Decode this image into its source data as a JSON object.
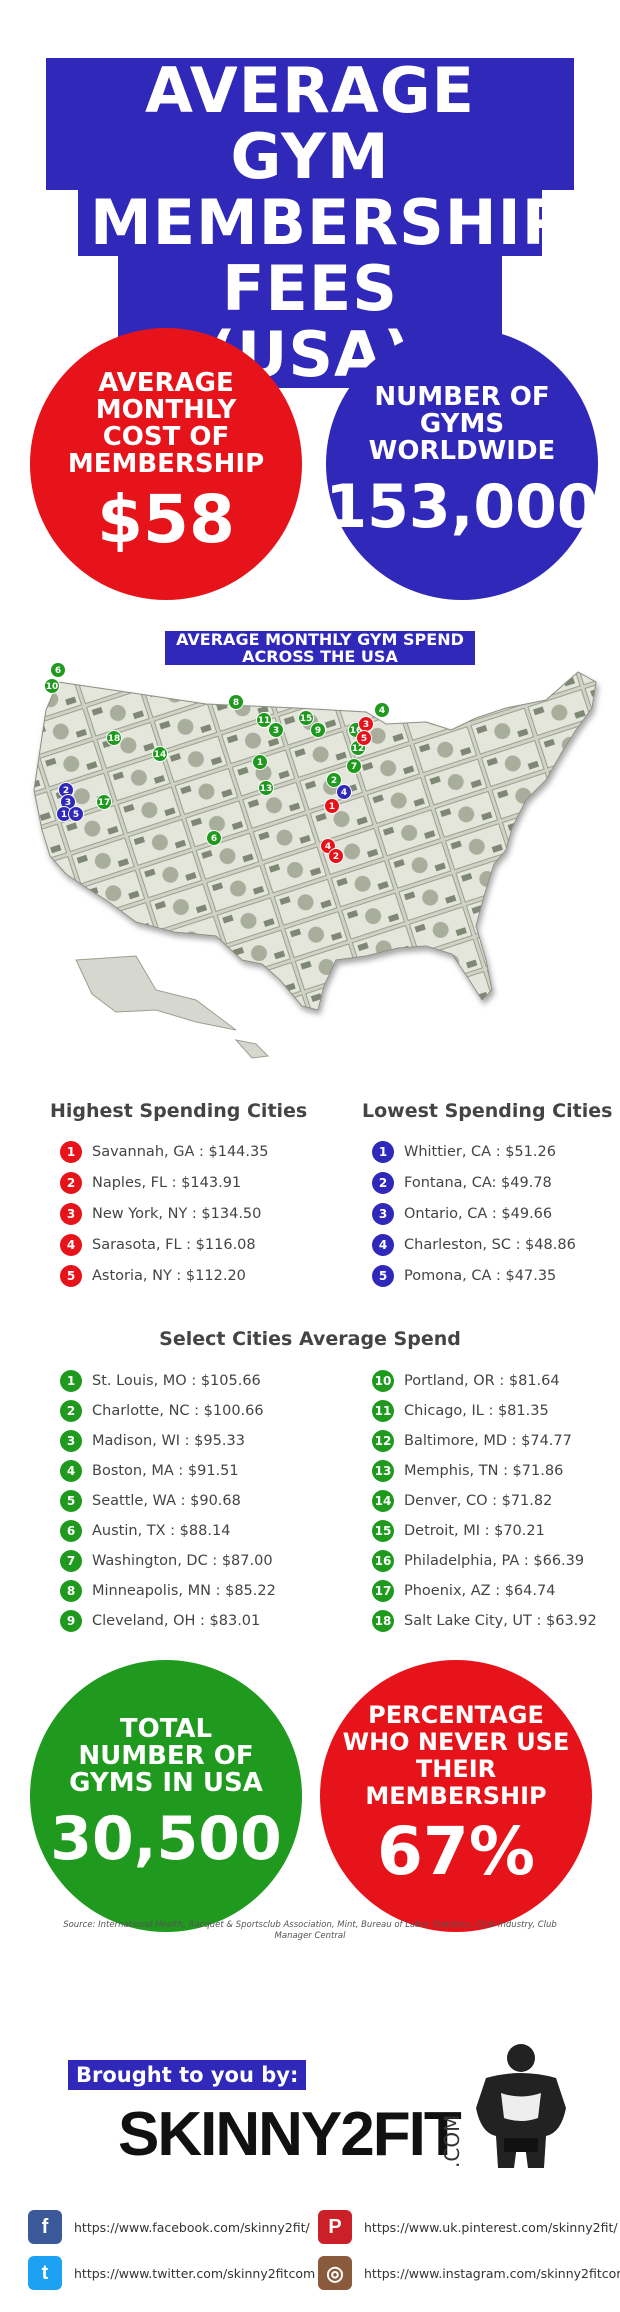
{
  "title": {
    "line1": "AVERAGE GYM",
    "line2": "MEMBERSHIP",
    "line3": "FEES (USA)"
  },
  "stats_top": {
    "avg_cost": {
      "label": "AVERAGE MONTHLY COST OF MEMBERSHIP",
      "value": "$58"
    },
    "gyms_worldwide": {
      "label": "NUMBER OF GYMS WORLDWIDE",
      "value": "153,000"
    }
  },
  "map": {
    "heading": "AVERAGE MONTHLY GYM SPEND ACROSS THE USA"
  },
  "highest": {
    "heading": "Highest Spending Cities",
    "items": [
      {
        "num": "1",
        "text": "Savannah, GA : $144.35"
      },
      {
        "num": "2",
        "text": "Naples, FL : $143.91"
      },
      {
        "num": "3",
        "text": "New York, NY : $134.50"
      },
      {
        "num": "4",
        "text": "Sarasota, FL : $116.08"
      },
      {
        "num": "5",
        "text": "Astoria, NY : $112.20"
      }
    ]
  },
  "lowest": {
    "heading": "Lowest Spending Cities",
    "items": [
      {
        "num": "1",
        "text": "Whittier, CA : $51.26"
      },
      {
        "num": "2",
        "text": "Fontana, CA: $49.78"
      },
      {
        "num": "3",
        "text": "Ontario, CA : $49.66"
      },
      {
        "num": "4",
        "text": "Charleston, SC : $48.86"
      },
      {
        "num": "5",
        "text": "Pomona, CA : $47.35"
      }
    ]
  },
  "select": {
    "heading": "Select Cities Average Spend",
    "left": [
      {
        "num": "1",
        "text": "St. Louis, MO : $105.66"
      },
      {
        "num": "2",
        "text": "Charlotte, NC : $100.66"
      },
      {
        "num": "3",
        "text": "Madison, WI : $95.33"
      },
      {
        "num": "4",
        "text": "Boston, MA : $91.51"
      },
      {
        "num": "5",
        "text": "Seattle, WA : $90.68"
      },
      {
        "num": "6",
        "text": "Austin, TX : $88.14"
      },
      {
        "num": "7",
        "text": "Washington, DC : $87.00"
      },
      {
        "num": "8",
        "text": "Minneapolis, MN : $85.22"
      },
      {
        "num": "9",
        "text": "Cleveland, OH : $83.01"
      }
    ],
    "right": [
      {
        "num": "10",
        "text": "Portland, OR : $81.64"
      },
      {
        "num": "11",
        "text": "Chicago, IL : $81.35"
      },
      {
        "num": "12",
        "text": "Baltimore, MD : $74.77"
      },
      {
        "num": "13",
        "text": "Memphis, TN : $71.86"
      },
      {
        "num": "14",
        "text": "Denver, CO : $71.82"
      },
      {
        "num": "15",
        "text": "Detroit, MI : $70.21"
      },
      {
        "num": "16",
        "text": "Philadelphia, PA : $66.39"
      },
      {
        "num": "17",
        "text": "Phoenix, AZ : $64.74"
      },
      {
        "num": "18",
        "text": "Salt Lake City, UT : $63.92"
      }
    ]
  },
  "stats_bottom": {
    "gyms_usa": {
      "label": "TOTAL NUMBER OF GYMS IN USA",
      "value": "30,500"
    },
    "never_use": {
      "label": "PERCENTAGE WHO NEVER USE THEIR MEMBERSHIP",
      "value": "67%"
    }
  },
  "source": "Source: International Health, Racquet & Sportsclub Association, Mint, Bureau of Labor Statistics, Club Industry, Club Manager Central",
  "footer": {
    "brought_by": "Brought to you by:",
    "brand": "SKINNY2FIT",
    "brand_suffix": ".COM",
    "social": [
      {
        "icon": "facebook-icon",
        "glyph": "f",
        "color": "#3b5998",
        "url": "https://www.facebook.com/skinny2fit/"
      },
      {
        "icon": "pinterest-icon",
        "glyph": "P",
        "color": "#cb2027",
        "url": "https://www.uk.pinterest.com/skinny2fit/"
      },
      {
        "icon": "twitter-icon",
        "glyph": "t",
        "color": "#1da1f2",
        "url": "https://www.twitter.com/skinny2fitcom"
      },
      {
        "icon": "instagram-icon",
        "glyph": "◎",
        "color": "#8a5a3c",
        "url": "https://www.instagram.com/skinny2fitcom"
      }
    ]
  },
  "colors": {
    "red": "#e6141a",
    "blue": "#2f28b8",
    "green": "#1f9a1f"
  },
  "map_markers": [
    {
      "num": "6",
      "color": "green"
    },
    {
      "num": "10",
      "color": "green"
    },
    {
      "num": "8",
      "color": "green"
    },
    {
      "num": "11",
      "color": "green"
    },
    {
      "num": "3",
      "color": "green"
    },
    {
      "num": "15",
      "color": "green"
    },
    {
      "num": "9",
      "color": "green"
    },
    {
      "num": "16",
      "color": "green"
    },
    {
      "num": "12",
      "color": "green"
    },
    {
      "num": "7",
      "color": "green"
    },
    {
      "num": "4",
      "color": "green"
    },
    {
      "num": "18",
      "color": "green"
    },
    {
      "num": "14",
      "color": "green"
    },
    {
      "num": "1",
      "color": "green"
    },
    {
      "num": "13",
      "color": "green"
    },
    {
      "num": "2",
      "color": "green"
    },
    {
      "num": "17",
      "color": "green"
    },
    {
      "num": "6",
      "color": "green"
    },
    {
      "num": "3",
      "color": "red"
    },
    {
      "num": "5",
      "color": "red"
    },
    {
      "num": "1",
      "color": "red"
    },
    {
      "num": "4",
      "color": "red"
    },
    {
      "num": "2",
      "color": "red"
    },
    {
      "num": "2",
      "color": "blue"
    },
    {
      "num": "3",
      "color": "blue"
    },
    {
      "num": "1",
      "color": "blue"
    },
    {
      "num": "5",
      "color": "blue"
    },
    {
      "num": "4",
      "color": "blue"
    }
  ]
}
